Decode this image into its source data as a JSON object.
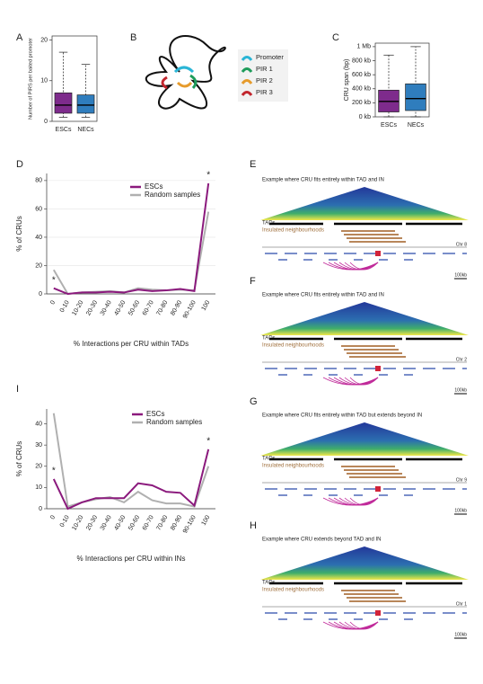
{
  "panel_labels": [
    "A",
    "B",
    "C",
    "D",
    "E",
    "F",
    "G",
    "H",
    "I"
  ],
  "chart_data": [
    {
      "type": "box",
      "y_label": "Number of PIRS per baited promoter",
      "categories": [
        "ESCs",
        "NECs"
      ],
      "series": [
        {
          "name": "ESCs",
          "color": "#7e2b8c",
          "min": 1,
          "q1": 2,
          "median": 4,
          "q3": 7,
          "max": 17
        },
        {
          "name": "NECs",
          "color": "#2f7dbd",
          "min": 1,
          "q1": 2,
          "median": 4,
          "q3": 6.5,
          "max": 14
        }
      ],
      "ylim": [
        0,
        21
      ],
      "yticks": [
        0,
        10,
        20
      ]
    },
    {
      "type": "box",
      "y_label": "CRU span (bp)",
      "categories": [
        "ESCs",
        "NECs"
      ],
      "series": [
        {
          "name": "ESCs",
          "color": "#7e2b8c",
          "min": 0,
          "q1": 70000,
          "median": 220000,
          "q3": 380000,
          "max": 880000
        },
        {
          "name": "NECs",
          "color": "#2f7dbd",
          "min": 0,
          "q1": 90000,
          "median": 260000,
          "q3": 470000,
          "max": 1000000
        }
      ],
      "ylim": [
        0,
        1050000
      ],
      "yticks": [
        {
          "value": 0,
          "label": "0 kb"
        },
        {
          "value": 200000,
          "label": "200 kb"
        },
        {
          "value": 400000,
          "label": "400 kb"
        },
        {
          "value": 600000,
          "label": "600 kb"
        },
        {
          "value": 800000,
          "label": "800 kb"
        },
        {
          "value": 1000000,
          "label": "1 Mb"
        }
      ]
    },
    {
      "type": "line",
      "y_label": "% of CRUs",
      "x_label": "% Interactions per CRU within TADs",
      "categories": [
        "0",
        "0-10",
        "10-20",
        "20-30",
        "30-40",
        "40-50",
        "50-60",
        "60-70",
        "70-80",
        "80-90",
        "90-100",
        "100"
      ],
      "series": [
        {
          "name": "ESCs",
          "color": "#8b1a7d",
          "values": [
            4,
            0,
            1,
            1,
            1.5,
            1,
            3,
            2,
            2.5,
            3.5,
            2,
            78
          ]
        },
        {
          "name": "Random samples",
          "color": "#b0b0b0",
          "values": [
            17,
            0,
            1,
            1.5,
            2,
            1,
            4,
            3,
            2.5,
            3,
            2.5,
            58
          ]
        }
      ],
      "ylim": [
        0,
        85
      ],
      "yticks": [
        0,
        20,
        40,
        60,
        80
      ],
      "grid": true,
      "legend": "top-left",
      "annotations": [
        {
          "text": "*",
          "category": "0"
        },
        {
          "text": "*",
          "category": "100"
        }
      ]
    },
    {
      "type": "line",
      "y_label": "% of CRUs",
      "x_label": "% Interactions per CRU within INs",
      "categories": [
        "0",
        "0-10",
        "10-20",
        "20-30",
        "30-40",
        "40-50",
        "50-60",
        "60-70",
        "70-80",
        "80-90",
        "90-100",
        "100"
      ],
      "series": [
        {
          "name": "ESCs",
          "color": "#8b1a7d",
          "values": [
            14,
            0,
            3,
            5,
            5,
            5,
            12,
            11,
            8,
            7.5,
            1.5,
            28
          ]
        },
        {
          "name": "Random samples",
          "color": "#b0b0b0",
          "values": [
            45,
            1,
            3,
            4.5,
            5.5,
            3,
            8,
            4,
            2.5,
            2.5,
            1,
            20
          ]
        }
      ],
      "ylim": [
        0,
        47
      ],
      "yticks": [
        0,
        10,
        20,
        30,
        40
      ],
      "grid": false,
      "legend": "top-right",
      "annotations": [
        {
          "text": "*",
          "category": "0"
        },
        {
          "text": "*",
          "category": "100"
        }
      ]
    }
  ],
  "diagram": {
    "legend": [
      "Promoter",
      "PIR 1",
      "PIR 2",
      "PIR 3"
    ]
  },
  "tracks": [
    {
      "caption": "Example where CRU fits entirely within TAD and IN",
      "tads": "TADs",
      "neighbourhoods": "Insulated neighbourhoods",
      "chromosome": "Chr 8",
      "scale": "100kb"
    },
    {
      "caption": "Example where CRU fits entirely within TAD and IN",
      "tads": "TADs",
      "neighbourhoods": "Insulated neighbourhoods",
      "chromosome": "Chr 2",
      "scale": "100kb"
    },
    {
      "caption": "Example where CRU fits entirely within TAD but extends beyond IN",
      "tads": "TADs",
      "neighbourhoods": "Insulated neighbourhoods",
      "chromosome": "Chr 9",
      "scale": "100kb"
    },
    {
      "caption": "Example where CRU extends beyond TAD and IN",
      "tads": "TADs",
      "neighbourhoods": "Insulated neighbourhoods",
      "chromosome": "Chr 1",
      "scale": "100kb"
    }
  ]
}
